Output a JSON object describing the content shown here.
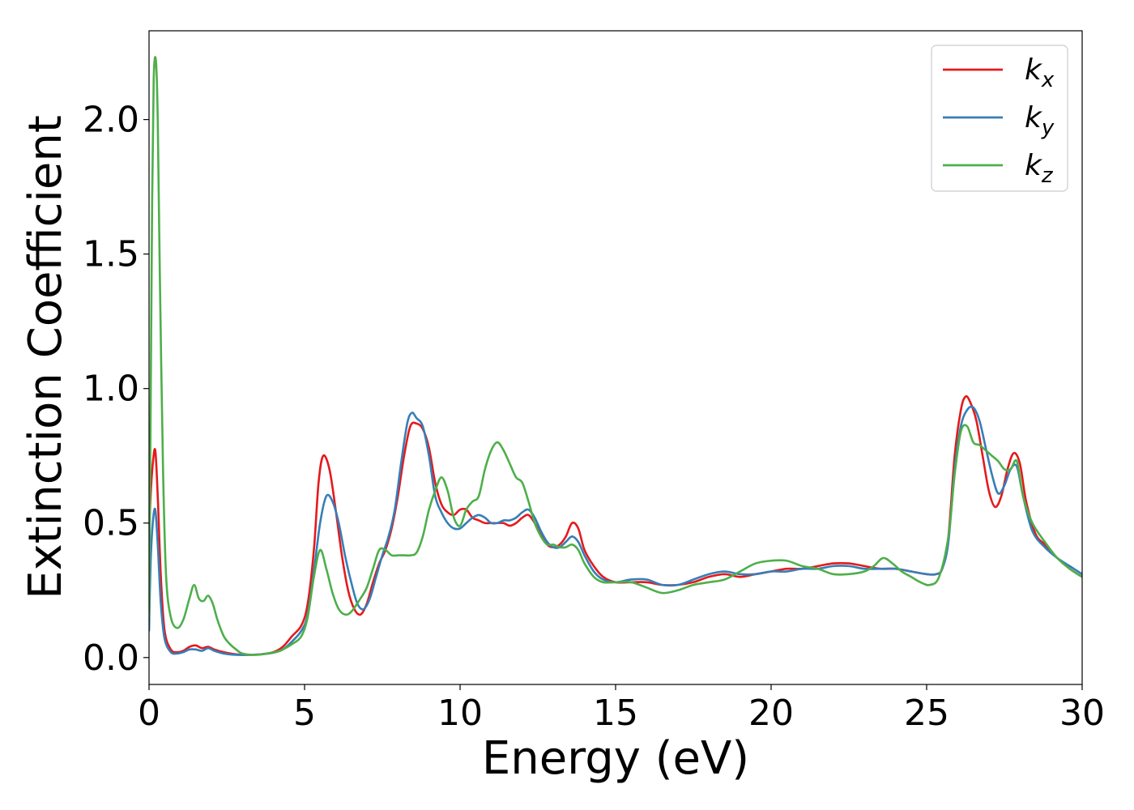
{
  "chart_data": {
    "type": "line",
    "xlabel": "Energy (eV)",
    "ylabel": "Extinction Coefficient",
    "xlim": [
      0,
      30
    ],
    "ylim": [
      -0.1,
      2.33
    ],
    "xticks": [
      0,
      5,
      10,
      15,
      20,
      25,
      30
    ],
    "xtick_labels": [
      "0",
      "5",
      "10",
      "15",
      "20",
      "25",
      "30"
    ],
    "yticks": [
      0.0,
      0.5,
      1.0,
      1.5,
      2.0
    ],
    "ytick_labels": [
      "0.0",
      "0.5",
      "1.0",
      "1.5",
      "2.0"
    ],
    "grid": false,
    "legend_position": "top-right",
    "series": [
      {
        "name": "k",
        "subscript": "x",
        "color": "#e41a1c",
        "x": [
          0,
          0.05,
          0.12,
          0.2,
          0.28,
          0.38,
          0.5,
          0.7,
          0.9,
          1.1,
          1.3,
          1.5,
          1.7,
          1.9,
          2.1,
          2.4,
          2.8,
          3.2,
          3.6,
          4.0,
          4.3,
          4.6,
          4.9,
          5.1,
          5.3,
          5.45,
          5.6,
          5.8,
          6.0,
          6.2,
          6.4,
          6.6,
          6.8,
          7.0,
          7.2,
          7.4,
          7.6,
          7.8,
          8.0,
          8.2,
          8.4,
          8.6,
          8.8,
          9.0,
          9.2,
          9.4,
          9.6,
          9.8,
          10.0,
          10.2,
          10.4,
          10.6,
          10.8,
          11.0,
          11.2,
          11.4,
          11.6,
          11.8,
          12.0,
          12.2,
          12.4,
          12.6,
          12.8,
          13.0,
          13.2,
          13.4,
          13.6,
          13.8,
          14.0,
          14.3,
          14.6,
          15.0,
          15.5,
          16.0,
          16.5,
          17.0,
          17.5,
          18.0,
          18.5,
          19.0,
          19.5,
          20.0,
          20.5,
          21.0,
          21.5,
          22.0,
          22.5,
          23.0,
          23.5,
          24.0,
          24.5,
          25.0,
          25.3,
          25.5,
          25.7,
          25.9,
          26.1,
          26.25,
          26.4,
          26.6,
          26.8,
          27.0,
          27.2,
          27.4,
          27.6,
          27.8,
          28.0,
          28.2,
          28.5,
          28.8,
          29.2,
          29.6,
          30.0
        ],
        "y": [
          0.45,
          0.6,
          0.72,
          0.77,
          0.6,
          0.3,
          0.1,
          0.03,
          0.02,
          0.025,
          0.04,
          0.045,
          0.035,
          0.04,
          0.03,
          0.02,
          0.012,
          0.01,
          0.012,
          0.02,
          0.04,
          0.08,
          0.12,
          0.2,
          0.4,
          0.65,
          0.75,
          0.7,
          0.55,
          0.38,
          0.25,
          0.18,
          0.16,
          0.2,
          0.28,
          0.35,
          0.4,
          0.48,
          0.6,
          0.75,
          0.86,
          0.87,
          0.85,
          0.78,
          0.65,
          0.57,
          0.54,
          0.53,
          0.55,
          0.55,
          0.52,
          0.51,
          0.5,
          0.5,
          0.5,
          0.5,
          0.49,
          0.5,
          0.52,
          0.53,
          0.5,
          0.46,
          0.42,
          0.41,
          0.42,
          0.45,
          0.5,
          0.48,
          0.4,
          0.34,
          0.3,
          0.28,
          0.28,
          0.28,
          0.27,
          0.27,
          0.28,
          0.3,
          0.31,
          0.3,
          0.31,
          0.32,
          0.33,
          0.33,
          0.34,
          0.35,
          0.35,
          0.34,
          0.33,
          0.33,
          0.32,
          0.31,
          0.31,
          0.33,
          0.45,
          0.75,
          0.92,
          0.97,
          0.95,
          0.88,
          0.75,
          0.62,
          0.56,
          0.6,
          0.7,
          0.76,
          0.72,
          0.58,
          0.46,
          0.42,
          0.37,
          0.33,
          0.3
        ]
      },
      {
        "name": "k",
        "subscript": "y",
        "color": "#377eb8",
        "x": [
          0,
          0.05,
          0.12,
          0.2,
          0.28,
          0.38,
          0.5,
          0.7,
          0.9,
          1.1,
          1.3,
          1.5,
          1.7,
          1.9,
          2.1,
          2.4,
          2.8,
          3.2,
          3.6,
          4.0,
          4.3,
          4.6,
          4.9,
          5.1,
          5.3,
          5.5,
          5.7,
          5.9,
          6.1,
          6.3,
          6.5,
          6.7,
          6.9,
          7.1,
          7.3,
          7.5,
          7.7,
          7.9,
          8.1,
          8.3,
          8.45,
          8.6,
          8.8,
          9.0,
          9.2,
          9.4,
          9.6,
          9.8,
          10.0,
          10.2,
          10.4,
          10.6,
          10.8,
          11.0,
          11.2,
          11.4,
          11.6,
          11.8,
          12.0,
          12.2,
          12.4,
          12.6,
          12.8,
          13.0,
          13.2,
          13.4,
          13.6,
          13.8,
          14.0,
          14.3,
          14.6,
          15.0,
          15.5,
          16.0,
          16.5,
          17.0,
          17.5,
          18.0,
          18.5,
          19.0,
          19.5,
          20.0,
          20.5,
          21.0,
          21.5,
          22.0,
          22.5,
          23.0,
          23.5,
          24.0,
          24.5,
          25.0,
          25.3,
          25.5,
          25.7,
          25.9,
          26.1,
          26.3,
          26.5,
          26.7,
          26.9,
          27.1,
          27.3,
          27.5,
          27.7,
          27.9,
          28.1,
          28.4,
          28.8,
          29.2,
          29.6,
          30.0
        ],
        "y": [
          0.1,
          0.35,
          0.5,
          0.55,
          0.42,
          0.2,
          0.07,
          0.02,
          0.015,
          0.02,
          0.03,
          0.03,
          0.025,
          0.035,
          0.025,
          0.015,
          0.01,
          0.01,
          0.012,
          0.018,
          0.03,
          0.06,
          0.1,
          0.16,
          0.32,
          0.5,
          0.6,
          0.58,
          0.5,
          0.38,
          0.28,
          0.2,
          0.18,
          0.22,
          0.3,
          0.38,
          0.45,
          0.55,
          0.72,
          0.87,
          0.91,
          0.89,
          0.86,
          0.75,
          0.6,
          0.54,
          0.5,
          0.48,
          0.48,
          0.5,
          0.52,
          0.53,
          0.52,
          0.5,
          0.5,
          0.51,
          0.51,
          0.52,
          0.54,
          0.55,
          0.52,
          0.47,
          0.43,
          0.41,
          0.41,
          0.43,
          0.45,
          0.43,
          0.38,
          0.32,
          0.29,
          0.28,
          0.29,
          0.29,
          0.27,
          0.27,
          0.29,
          0.31,
          0.32,
          0.31,
          0.31,
          0.32,
          0.32,
          0.33,
          0.33,
          0.34,
          0.34,
          0.33,
          0.33,
          0.33,
          0.32,
          0.31,
          0.31,
          0.33,
          0.43,
          0.7,
          0.86,
          0.92,
          0.93,
          0.88,
          0.78,
          0.68,
          0.61,
          0.64,
          0.7,
          0.71,
          0.6,
          0.47,
          0.41,
          0.37,
          0.34,
          0.31
        ]
      },
      {
        "name": "k",
        "subscript": "z",
        "color": "#4daf4a",
        "x": [
          0,
          0.05,
          0.1,
          0.15,
          0.22,
          0.28,
          0.35,
          0.45,
          0.55,
          0.7,
          0.9,
          1.1,
          1.3,
          1.45,
          1.6,
          1.75,
          1.9,
          2.05,
          2.2,
          2.4,
          2.6,
          2.8,
          3.0,
          3.4,
          3.8,
          4.2,
          4.6,
          4.9,
          5.1,
          5.3,
          5.5,
          5.7,
          5.9,
          6.1,
          6.3,
          6.5,
          6.8,
          7.0,
          7.2,
          7.4,
          7.6,
          7.8,
          8.0,
          8.2,
          8.4,
          8.6,
          8.8,
          9.0,
          9.2,
          9.4,
          9.6,
          9.8,
          10.0,
          10.2,
          10.4,
          10.6,
          10.8,
          11.0,
          11.2,
          11.4,
          11.6,
          11.8,
          12.0,
          12.2,
          12.4,
          12.6,
          12.8,
          13.0,
          13.2,
          13.4,
          13.6,
          13.8,
          14.0,
          14.3,
          14.6,
          15.0,
          15.5,
          16.0,
          16.5,
          17.0,
          17.5,
          18.0,
          18.5,
          19.0,
          19.5,
          20.0,
          20.5,
          21.0,
          21.5,
          22.0,
          22.5,
          23.0,
          23.3,
          23.6,
          23.9,
          24.2,
          24.5,
          24.8,
          25.1,
          25.4,
          25.7,
          25.9,
          26.1,
          26.3,
          26.5,
          26.7,
          26.9,
          27.1,
          27.3,
          27.5,
          27.7,
          27.9,
          28.1,
          28.4,
          28.8,
          29.2,
          29.6,
          30.0
        ],
        "y": [
          0.15,
          0.9,
          1.7,
          2.15,
          2.22,
          2.0,
          1.4,
          0.7,
          0.3,
          0.15,
          0.11,
          0.14,
          0.22,
          0.27,
          0.22,
          0.21,
          0.23,
          0.2,
          0.14,
          0.08,
          0.05,
          0.03,
          0.015,
          0.01,
          0.015,
          0.025,
          0.05,
          0.08,
          0.15,
          0.3,
          0.4,
          0.33,
          0.24,
          0.18,
          0.16,
          0.17,
          0.22,
          0.26,
          0.33,
          0.4,
          0.4,
          0.38,
          0.38,
          0.38,
          0.38,
          0.39,
          0.45,
          0.55,
          0.62,
          0.67,
          0.62,
          0.52,
          0.49,
          0.55,
          0.58,
          0.6,
          0.7,
          0.77,
          0.8,
          0.77,
          0.72,
          0.67,
          0.65,
          0.58,
          0.5,
          0.45,
          0.42,
          0.42,
          0.41,
          0.41,
          0.42,
          0.4,
          0.35,
          0.3,
          0.28,
          0.28,
          0.28,
          0.26,
          0.24,
          0.25,
          0.27,
          0.28,
          0.29,
          0.32,
          0.35,
          0.36,
          0.36,
          0.34,
          0.33,
          0.31,
          0.31,
          0.32,
          0.34,
          0.37,
          0.35,
          0.32,
          0.3,
          0.28,
          0.27,
          0.3,
          0.45,
          0.68,
          0.84,
          0.86,
          0.8,
          0.79,
          0.77,
          0.75,
          0.73,
          0.7,
          0.7,
          0.73,
          0.6,
          0.5,
          0.43,
          0.37,
          0.33,
          0.3
        ]
      }
    ]
  }
}
